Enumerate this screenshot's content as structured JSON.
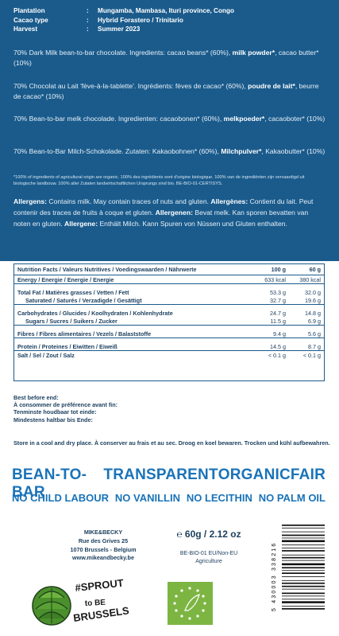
{
  "meta": [
    {
      "k": "Plantation",
      "v": "Mungamba, Mambasa, Ituri province, Congo"
    },
    {
      "k": "Cacao type",
      "v": "Hybrid Forastero / Trinitario"
    },
    {
      "k": "Harvest",
      "v": "Summer 2023"
    }
  ],
  "paragraphs": [
    {
      "pre": "70% Dark Milk bean-to-bar chocolate. Ingredients: cacao beans* (60%), ",
      "bold": "milk powder*",
      "post": ", cacao butter* (10%)"
    },
    {
      "pre": "70% Chocolat au Lait 'fève-à-la-tablette'. Ingrédients: fèves de cacao* (60%), ",
      "bold": "poudre de lait*",
      "post": ", beurre de cacao* (10%)"
    },
    {
      "pre": "70% Bean-to-bar melk chocolade. Ingredienten: cacaobonen* (60%), ",
      "bold": "melkpoeder*",
      "post": ", cacaoboter* (10%)"
    },
    {
      "pre": "70% Bean-to-Bar Milch-Schokolade. Zutaten: Kakaobohnen* (60%), ",
      "bold": "Milchpulver*",
      "post": ", Kakaobutter* (10%)"
    }
  ],
  "fineprint": "*100% of ingredients of agricultural origin are organic. 100% des ingrédients sont d'origine biologique. 100% van de ingrediënten zijn vervaardigd uit biologische landbouw. 100% aller Zutaten landwirtschaftlichen Ursprungs sind bio. BE-BIO-01-CERTISYS.",
  "allergens": [
    {
      "label": "Allergens:",
      "text": " Contains milk. May contain traces of nuts and gluten. "
    },
    {
      "label": "Allergènes:",
      "text": " Contient du lait. Peut contenir des traces de fruits à coque et gluten. "
    },
    {
      "label": "Allergenen:",
      "text": " Bevat melk. Kan sporen bevatten van noten en gluten. "
    },
    {
      "label": "Allergene:",
      "text": " Enthält Milch. Kann Spuren von Nüssen und Gluten enthalten."
    }
  ],
  "nutrition": {
    "header": {
      "label": "Nutrition Facts / Valeurs Nutritives / Voedingswaarden / Nährwerte",
      "c1": "100 g",
      "c2": "60 g"
    },
    "rows": [
      {
        "label": "Energy / Energie / Energie / Energie",
        "c1": "633 kcal",
        "c2": "380 kcal",
        "cls": "b sep"
      },
      {
        "label": "",
        "c1": "",
        "c2": "",
        "cls": "gap"
      },
      {
        "label": "Total Fat / Matières grasses / Vetten / Fett",
        "c1": "53.3 g",
        "c2": "32.0 g",
        "cls": "b"
      },
      {
        "label": "Saturated / Saturés / Verzadigde / Gesättigt",
        "c1": "32.7 g",
        "c2": "19.6 g",
        "cls": "sub sep"
      },
      {
        "label": "",
        "c1": "",
        "c2": "",
        "cls": "gap"
      },
      {
        "label": "Carbohydrates / Glucides / Koolhydraten / Kohlenhydrate",
        "c1": "24.7 g",
        "c2": "14.8 g",
        "cls": "b"
      },
      {
        "label": "Sugars / Sucres / Suikers / Zucker",
        "c1": "11.5 g",
        "c2": "6.9 g",
        "cls": "sub sep"
      },
      {
        "label": "",
        "c1": "",
        "c2": "",
        "cls": "gap"
      },
      {
        "label": "Fibres / Fibres alimentaires / Vezels / Balaststoffe",
        "c1": "9.4 g",
        "c2": "5.6 g",
        "cls": "b sep"
      },
      {
        "label": "",
        "c1": "",
        "c2": "",
        "cls": "gap"
      },
      {
        "label": "Protein / Proteines / Eiwitten / Eiweiß",
        "c1": "14.5 g",
        "c2": "8.7 g",
        "cls": "b sep"
      },
      {
        "label": "Salt / Sel / Zout / Salz",
        "c1": "< 0.1 g",
        "c2": "< 0.1 g",
        "cls": "b"
      }
    ]
  },
  "best_before": [
    "Best before end:",
    "À consommer de préférence avant fin:",
    "Tenminste houdbaar tot einde:",
    "Mindestens haltbar bis Ende:"
  ],
  "storage": "Store in a cool and dry place. À conserver au frais et au sec. Droog en koel bewaren. Trocken und kühl aufbewahren.",
  "slogans": [
    "BEAN-TO-BAR",
    "TRANSPARENT",
    "ORGANIC",
    "FAIR"
  ],
  "claims": [
    "NO CHILD LABOUR",
    "NO VANILLIN",
    "NO LECITHIN",
    "NO PALM OIL"
  ],
  "address": [
    "MIKE&BECKY",
    "Rue des Grives 25",
    "1070 Brussels - Belgium",
    "www.mikeandbecky.be"
  ],
  "weight": "℮ 60g / 2.12 oz",
  "bio": [
    "BE-BIO-01 EU/Non-EU",
    "Agriculture"
  ],
  "sprout_text": [
    "#SPROUT",
    "to BE",
    "BRUSSELS"
  ],
  "barcode_digits": "5 430003 338216",
  "colors": {
    "brand_blue": "#1a5b8c",
    "accent_blue": "#1a73b8",
    "eu_green": "#7db543"
  }
}
